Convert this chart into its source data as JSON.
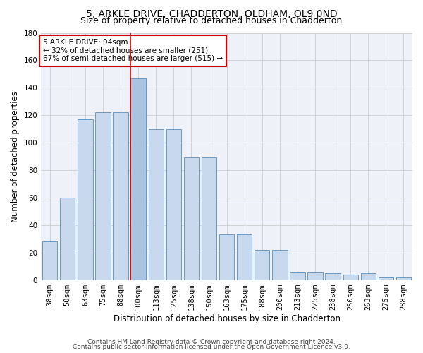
{
  "title1": "5, ARKLE DRIVE, CHADDERTON, OLDHAM, OL9 0ND",
  "title2": "Size of property relative to detached houses in Chadderton",
  "xlabel": "Distribution of detached houses by size in Chadderton",
  "ylabel": "Number of detached properties",
  "footnote1": "Contains HM Land Registry data © Crown copyright and database right 2024.",
  "footnote2": "Contains public sector information licensed under the Open Government Licence v3.0.",
  "categories": [
    "38sqm",
    "50sqm",
    "63sqm",
    "75sqm",
    "88sqm",
    "100sqm",
    "113sqm",
    "125sqm",
    "138sqm",
    "150sqm",
    "163sqm",
    "175sqm",
    "188sqm",
    "200sqm",
    "213sqm",
    "225sqm",
    "238sqm",
    "250sqm",
    "263sqm",
    "275sqm",
    "288sqm"
  ],
  "values": [
    28,
    60,
    117,
    122,
    122,
    147,
    110,
    110,
    89,
    89,
    33,
    33,
    22,
    22,
    6,
    6,
    5,
    4,
    5,
    2,
    2
  ],
  "bar_color": "#c9d9ed",
  "bar_edge_color": "#5b8db8",
  "highlight_bar_index": 5,
  "highlight_bar_color": "#a8c4e0",
  "ylim": [
    0,
    180
  ],
  "yticks": [
    0,
    20,
    40,
    60,
    80,
    100,
    120,
    140,
    160,
    180
  ],
  "annotation_text": "5 ARKLE DRIVE: 94sqm\n← 32% of detached houses are smaller (251)\n67% of semi-detached houses are larger (515) →",
  "annotation_box_color": "#ffffff",
  "annotation_border_color": "#cc0000",
  "vline_color": "#cc0000",
  "background_color": "#eef2f8",
  "grid_color": "#cccccc",
  "title1_fontsize": 10,
  "title2_fontsize": 9,
  "axis_label_fontsize": 8.5,
  "tick_fontsize": 7.5,
  "annotation_fontsize": 7.5,
  "footnote_fontsize": 6.5
}
